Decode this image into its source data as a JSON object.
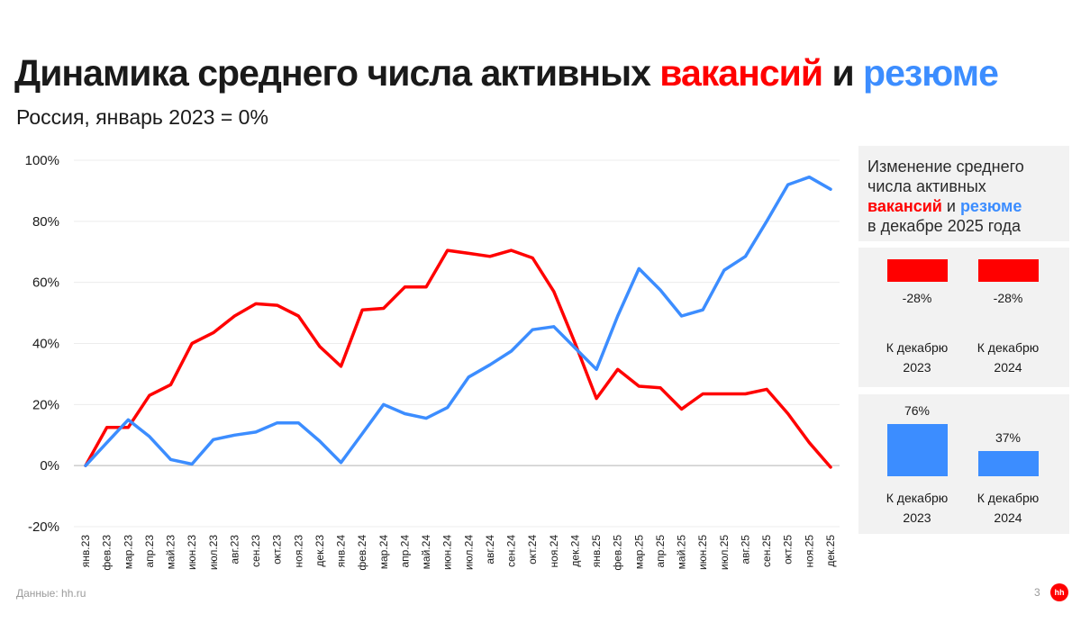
{
  "title": {
    "part1": "Динамика среднего числа активных ",
    "part2": "вакансий",
    "part3": " и ",
    "part4": "резюме"
  },
  "subtitle": "Россия, январь 2023 = 0%",
  "colors": {
    "vacancies": "#ff0000",
    "resumes": "#3c8dff"
  },
  "chart_data": [
    {
      "type": "line",
      "title": "Динамика среднего числа активных вакансий и резюме",
      "ylim": [
        -20,
        100
      ],
      "yticks": [
        -20,
        0,
        20,
        40,
        60,
        80,
        100
      ],
      "ytick_labels": [
        "-20%",
        "0%",
        "20%",
        "40%",
        "60%",
        "80%",
        "100%"
      ],
      "categories": [
        "янв.23",
        "фев.23",
        "мар.23",
        "апр.23",
        "май.23",
        "июн.23",
        "июл.23",
        "авг.23",
        "сен.23",
        "окт.23",
        "ноя.23",
        "дек.23",
        "янв.24",
        "фев.24",
        "мар.24",
        "апр.24",
        "май.24",
        "июн.24",
        "июл.24",
        "авг.24",
        "сен.24",
        "окт.24",
        "ноя.24",
        "дек.24",
        "янв.25",
        "фев.25",
        "мар.25",
        "апр.25",
        "май.25",
        "июн.25",
        "июл.25",
        "авг.25",
        "сен.25",
        "окт.25",
        "ноя.25",
        "дек.25"
      ],
      "series": [
        {
          "name": "вакансии",
          "color": "#ff0000",
          "values": [
            0,
            12.5,
            12.5,
            23,
            26.5,
            40,
            43.5,
            49,
            53,
            52.5,
            49,
            39,
            32.5,
            51,
            51.5,
            58.5,
            58.5,
            70.5,
            69.5,
            68.5,
            70.5,
            68,
            57,
            40,
            22,
            31.5,
            26,
            25.5,
            18.5,
            23.5,
            23.5,
            23.5,
            25,
            17,
            7.5,
            -0.5
          ]
        },
        {
          "name": "резюме",
          "color": "#3c8dff",
          "values": [
            0,
            7.5,
            15,
            9.5,
            2,
            0.5,
            8.5,
            10,
            11,
            14,
            14,
            8,
            1,
            10.5,
            20,
            17,
            15.5,
            19,
            29,
            33,
            37.5,
            44.5,
            45.5,
            38.5,
            31.5,
            49,
            64.5,
            57.5,
            49,
            51,
            64,
            68.5,
            80,
            92,
            94.5,
            90.5
          ]
        }
      ]
    },
    {
      "type": "bar",
      "title": "Изменение среднего числа активных вакансий в декабре 2025 года",
      "categories": [
        "К декабрю 2023",
        "К декабрю 2024"
      ],
      "values": [
        -28,
        -28
      ],
      "value_labels": [
        "-28%",
        "-28%"
      ]
    },
    {
      "type": "bar",
      "title": "Изменение среднего числа активных резюме в декабре 2025 года",
      "categories": [
        "К декабрю 2023",
        "К декабрю 2024"
      ],
      "values": [
        76,
        37
      ],
      "value_labels": [
        "76%",
        "37%"
      ]
    }
  ],
  "side_panel": {
    "line1": "Изменение среднего",
    "line2": "числа активных",
    "word_vac": "вакансий",
    "word_and": " и ",
    "word_res": "резюме",
    "line4": "в декабре 2025 года",
    "vac": {
      "labels": [
        "-28%",
        "-28%"
      ],
      "caps": [
        [
          "К декабрю",
          "2023"
        ],
        [
          "К декабрю",
          "2024"
        ]
      ]
    },
    "res": {
      "labels": [
        "76%",
        "37%"
      ],
      "caps": [
        [
          "К декабрю",
          "2023"
        ],
        [
          "К декабрю",
          "2024"
        ]
      ]
    }
  },
  "footer": "Данные: hh.ru",
  "page_number": "3",
  "logo_text": "hh"
}
